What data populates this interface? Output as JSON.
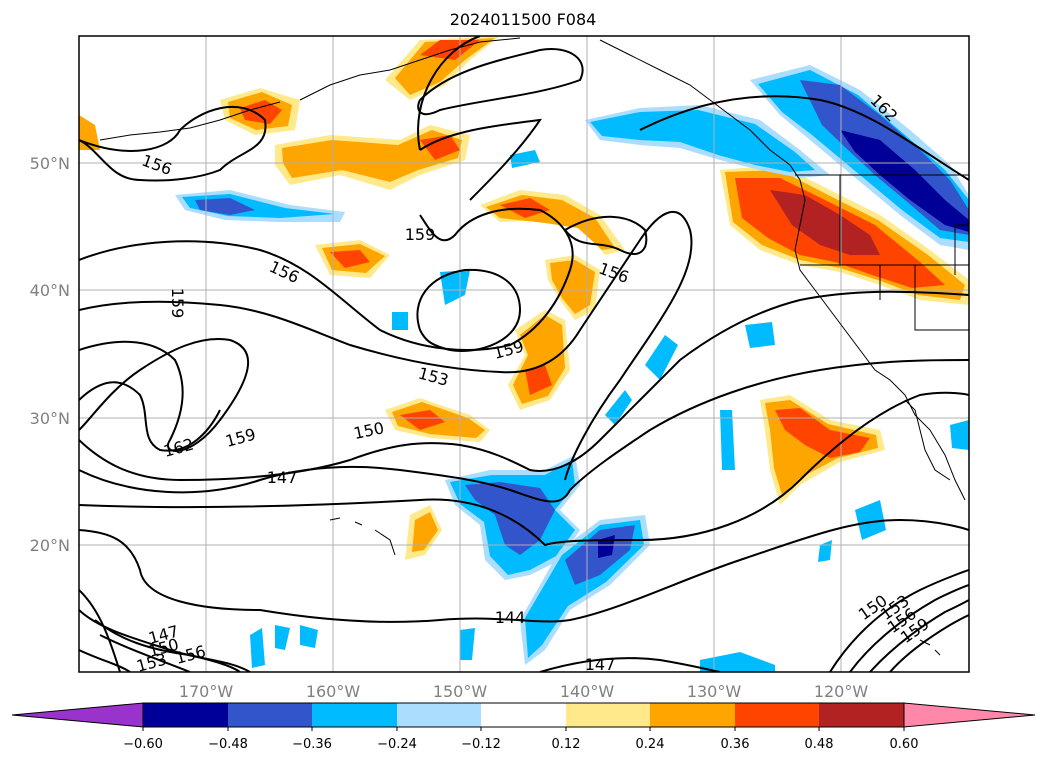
{
  "title": "2024011500 F084",
  "lat_labels": [
    "50°N",
    "40°N",
    "30°N",
    "20°N"
  ],
  "lon_labels": [
    "170°W",
    "160°W",
    "150°W",
    "140°W",
    "130°W",
    "120°W"
  ],
  "colorbar": {
    "colors": [
      "#9933cc",
      "#000099",
      "#3355cc",
      "#00bbff",
      "#aaddff",
      "#ffffff",
      "#ffe98a",
      "#ffa500",
      "#ff4400",
      "#b22222",
      "#ff88aa"
    ],
    "tick_labels": [
      "−0.60",
      "−0.48",
      "−0.36",
      "−0.24",
      "−0.12",
      "0.12",
      "0.24",
      "0.36",
      "0.48",
      "0.60"
    ]
  },
  "contour_labels": [
    "156",
    "159",
    "156",
    "159",
    "159",
    "153",
    "150",
    "162",
    "159",
    "147",
    "144",
    "147",
    "147",
    "150",
    "153",
    "156",
    "162",
    "150",
    "153",
    "156",
    "159",
    "156"
  ]
}
